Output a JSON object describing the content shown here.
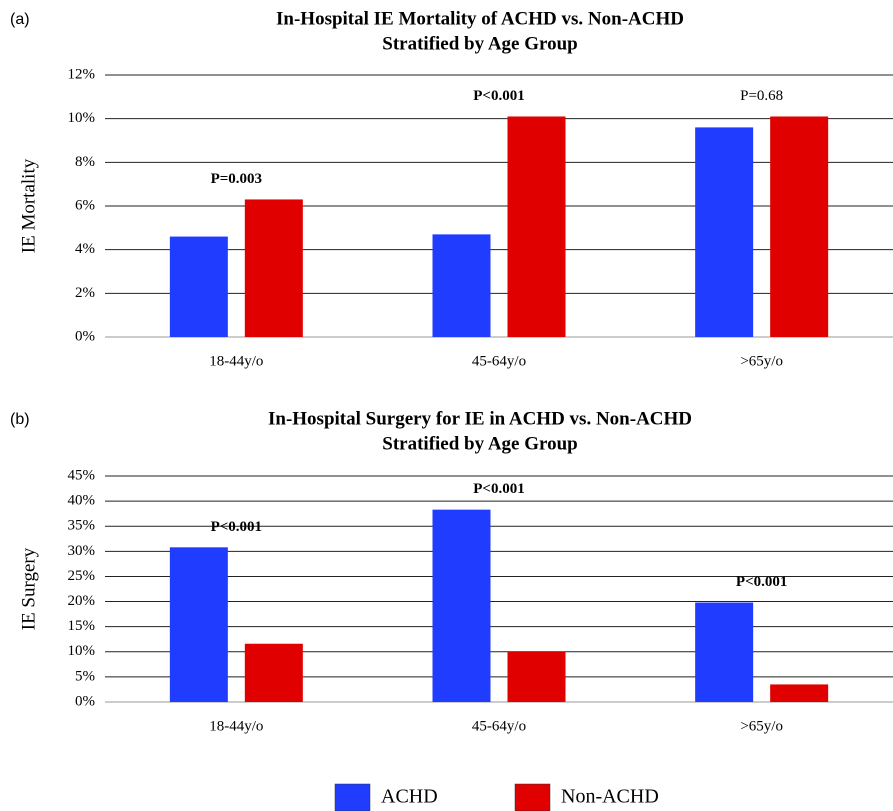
{
  "chart_data": [
    {
      "type": "bar",
      "panel_label": "(a)",
      "title": [
        "In-Hospital IE Mortality of ACHD vs. Non-ACHD",
        "Stratified by Age Group"
      ],
      "y_label": "IE Mortality",
      "categories": [
        "18-44y/o",
        "45-64y/o",
        ">65y/o"
      ],
      "series": [
        {
          "name": "ACHD",
          "color": "#1f3cff",
          "values": [
            4.6,
            4.7,
            9.6
          ]
        },
        {
          "name": "Non-ACHD",
          "color": "#e00000",
          "values": [
            6.3,
            10.1,
            10.1
          ]
        }
      ],
      "annotations": [
        "P=0.003",
        "P<0.001",
        "P=0.68"
      ],
      "annotation_bold": [
        true,
        true,
        false
      ],
      "ylim": [
        0,
        12
      ],
      "yticks": [
        {
          "value": 0,
          "label": "0%"
        },
        {
          "value": 2,
          "label": "2%"
        },
        {
          "value": 4,
          "label": "4%"
        },
        {
          "value": 6,
          "label": "6%"
        },
        {
          "value": 8,
          "label": "8%"
        },
        {
          "value": 10,
          "label": "10%"
        },
        {
          "value": 12,
          "label": "12%"
        }
      ],
      "grid": true
    },
    {
      "type": "bar",
      "panel_label": "(b)",
      "title": [
        "In-Hospital Surgery for IE in ACHD vs. Non-ACHD",
        "Stratified by Age Group"
      ],
      "y_label": "IE Surgery",
      "categories": [
        "18-44y/o",
        "45-64y/o",
        ">65y/o"
      ],
      "series": [
        {
          "color": "#1f3cff",
          "values": [
            30.8,
            38.3,
            19.8
          ]
        },
        {
          "color": "#e00000",
          "values": [
            11.6,
            10.0,
            3.5
          ]
        }
      ],
      "annotations": [
        "P<0.001",
        "P<0.001",
        "P<0.001"
      ],
      "annotation_bold": [
        true,
        true,
        true
      ],
      "ylim": [
        0,
        45
      ],
      "yticks": [
        {
          "value": 0,
          "label": "0%"
        },
        {
          "value": 5,
          "label": "5%"
        },
        {
          "value": 10,
          "label": "10%"
        },
        {
          "value": 15,
          "label": "15%"
        },
        {
          "value": 20,
          "label": "20%"
        },
        {
          "value": 25,
          "label": "25%"
        },
        {
          "value": 30,
          "label": "30%"
        },
        {
          "value": 35,
          "label": "35%"
        },
        {
          "value": 40,
          "label": "40%"
        },
        {
          "value": 45,
          "label": "45%"
        }
      ],
      "grid": true
    }
  ]
}
